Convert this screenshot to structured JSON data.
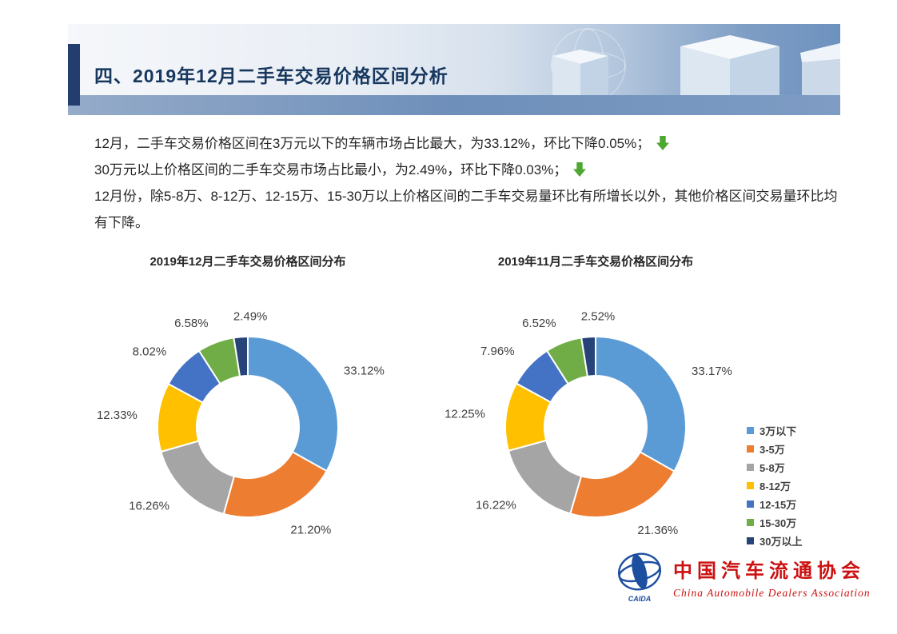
{
  "header": {
    "title": "四、2019年12月二手车交易价格区间分析"
  },
  "body": {
    "line1": "12月，二手车交易价格区间在3万元以下的车辆市场占比最大，为33.12%，环比下降0.05%；",
    "line2": "30万元以上价格区间的二手车交易市场占比最小，为2.49%，环比下降0.03%；",
    "line3": "12月份，除5-8万、8-12万、12-15万、15-30万以上价格区间的二手车交易量环比有所增长以外，其他价格区间交易量环比均有下降。"
  },
  "chart_data": [
    {
      "type": "pie",
      "subtype": "donut",
      "title": "2019年12月二手车交易价格区间分布",
      "categories": [
        "3万以下",
        "3-5万",
        "5-8万",
        "8-12万",
        "12-15万",
        "15-30万",
        "30万以上"
      ],
      "values": [
        33.12,
        21.2,
        16.26,
        12.33,
        8.02,
        6.58,
        2.49
      ],
      "labels": [
        "33.12%",
        "21.20%",
        "16.26%",
        "12.33%",
        "8.02%",
        "6.58%",
        "2.49%"
      ],
      "colors": [
        "#5B9BD5",
        "#ED7D31",
        "#A5A5A5",
        "#FFC000",
        "#4472C4",
        "#70AD47",
        "#264478"
      ],
      "start_angle": 0,
      "direction": "clockwise",
      "legend_position": "none"
    },
    {
      "type": "pie",
      "subtype": "donut",
      "title": "2019年11月二手车交易价格区间分布",
      "categories": [
        "3万以下",
        "3-5万",
        "5-8万",
        "8-12万",
        "12-15万",
        "15-30万",
        "30万以上"
      ],
      "values": [
        33.17,
        21.36,
        16.22,
        12.25,
        7.96,
        6.52,
        2.52
      ],
      "labels": [
        "33.17%",
        "21.36%",
        "16.22%",
        "12.25%",
        "7.96%",
        "6.52%",
        "2.52%"
      ],
      "colors": [
        "#5B9BD5",
        "#ED7D31",
        "#A5A5A5",
        "#FFC000",
        "#4472C4",
        "#70AD47",
        "#264478"
      ],
      "start_angle": 0,
      "direction": "clockwise",
      "legend_position": "right"
    }
  ],
  "legend": {
    "items": [
      {
        "label": "3万以下",
        "color": "#5B9BD5"
      },
      {
        "label": "3-5万",
        "color": "#ED7D31"
      },
      {
        "label": "5-8万",
        "color": "#A5A5A5"
      },
      {
        "label": "8-12万",
        "color": "#FFC000"
      },
      {
        "label": "12-15万",
        "color": "#4472C4"
      },
      {
        "label": "15-30万",
        "color": "#70AD47"
      },
      {
        "label": "30万以上",
        "color": "#264478"
      }
    ]
  },
  "icons": {
    "down_arrow": "down-arrow-icon",
    "down_arrow_color": "#4EA72E"
  },
  "footer_logo": {
    "acronym": "CAIDA",
    "name_cn": "中国汽车流通协会",
    "name_en": "China Automobile Dealers Association",
    "emblem_color": "#1d4fa1",
    "text_color": "#cc1111"
  },
  "colors": {
    "banner_title": "#17375E",
    "banner_accent_bar": "#223D6E",
    "banner_strip": "#6E8FBA",
    "body_text": "#262626"
  }
}
